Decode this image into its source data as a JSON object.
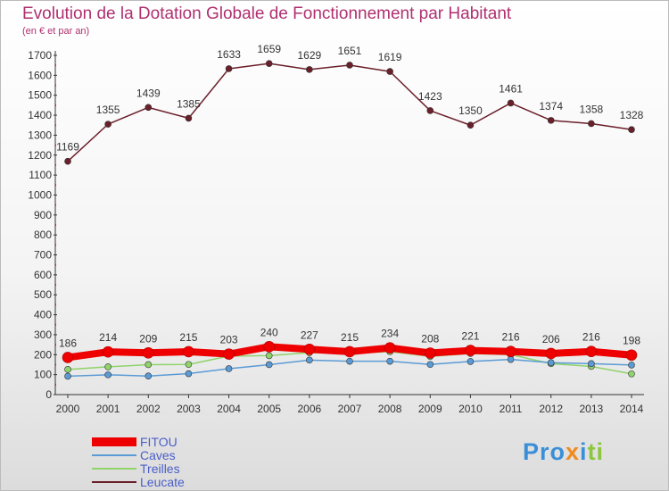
{
  "chart_data": {
    "type": "line",
    "title": "Evolution de la Dotation Globale de Fonctionnement par Habitant",
    "subtitle": "(en € et par an)",
    "xlabel": "",
    "ylabel": "",
    "ylim": [
      0,
      1700
    ],
    "yticks": [
      0,
      100,
      200,
      300,
      400,
      500,
      600,
      700,
      800,
      900,
      1000,
      1100,
      1200,
      1300,
      1400,
      1500,
      1600,
      1700
    ],
    "categories": [
      "2000",
      "2001",
      "2002",
      "2003",
      "2004",
      "2005",
      "2006",
      "2007",
      "2008",
      "2009",
      "2010",
      "2011",
      "2012",
      "2013",
      "2014"
    ],
    "series": [
      {
        "name": "FITOU",
        "color": "#ee0000",
        "values": [
          186,
          214,
          209,
          215,
          203,
          240,
          227,
          215,
          234,
          208,
          221,
          216,
          206,
          216,
          198
        ]
      },
      {
        "name": "Caves",
        "color": "#5b9bd5",
        "values": [
          92,
          99,
          93,
          105,
          130,
          150,
          173,
          167,
          167,
          151,
          166,
          176,
          160,
          155,
          148
        ]
      },
      {
        "name": "Treilles",
        "color": "#8fd36a",
        "values": [
          126,
          139,
          150,
          151,
          193,
          195,
          210,
          208,
          215,
          191,
          206,
          200,
          155,
          141,
          104
        ]
      },
      {
        "name": "Leucate",
        "color": "#6b1f2a",
        "values": [
          1169,
          1355,
          1439,
          1385,
          1633,
          1659,
          1629,
          1651,
          1619,
          1423,
          1350,
          1461,
          1374,
          1358,
          1328
        ]
      }
    ],
    "data_labels": {
      "Leucate": [
        "1169",
        "1355",
        "1439",
        "1385",
        "1633",
        "1659",
        "1629",
        "1651",
        "1619",
        "1423",
        "1350",
        "1461",
        "1374",
        "1358",
        "1328"
      ],
      "FITOU": [
        "186",
        "214",
        "209",
        "215",
        "203",
        "240",
        "227",
        "215",
        "234",
        "208",
        "221",
        "216",
        "206",
        "216",
        "198"
      ]
    },
    "legend_position": "bottom-left",
    "grid": false
  },
  "branding": {
    "logo_text": "Proxiti"
  },
  "colors": {
    "title": "#b03070",
    "axis": "#333333",
    "legend_text": "#4a5ec8",
    "label": "#333333"
  }
}
